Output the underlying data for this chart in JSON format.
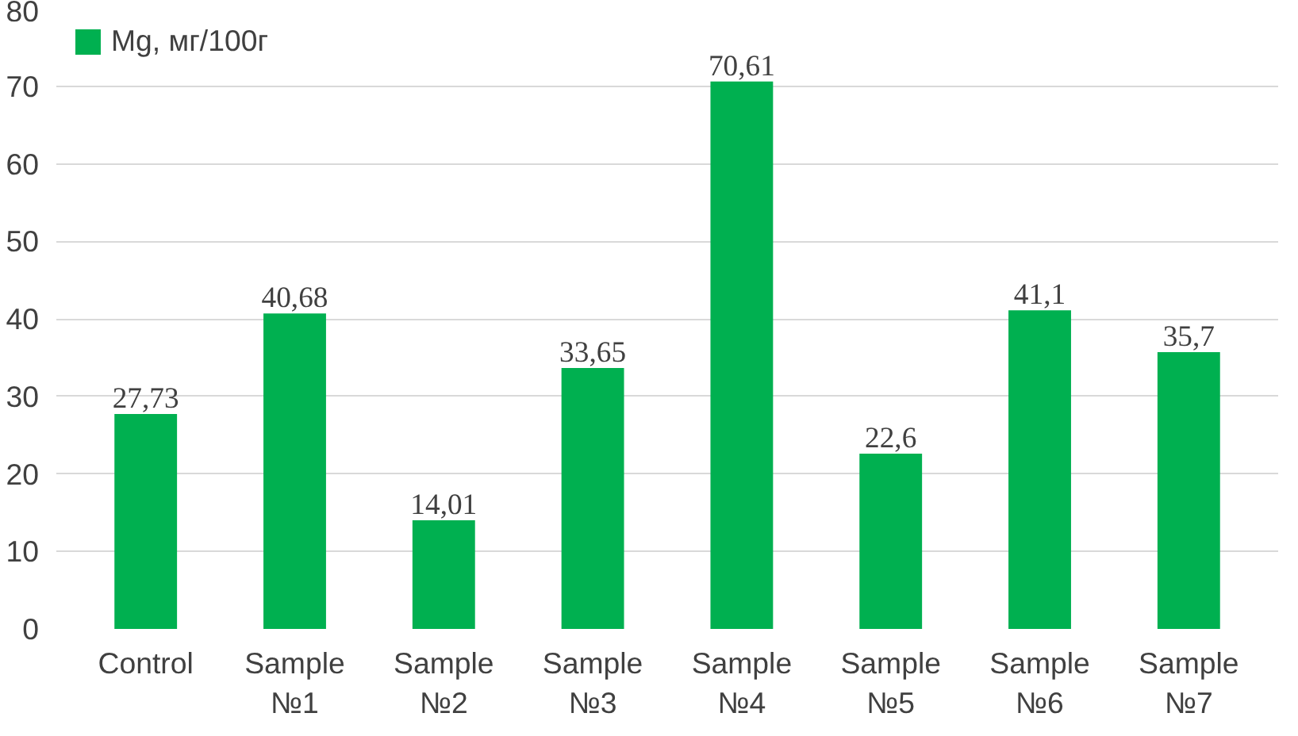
{
  "chart_data": {
    "type": "bar",
    "categories": [
      "Control",
      "Sample №1",
      "Sample №2",
      "Sample №3",
      "Sample №4",
      "Sample №5",
      "Sample №6",
      "Sample №7"
    ],
    "series": [
      {
        "name": "Mg, мг/100г",
        "color": "#00b050",
        "values": [
          27.73,
          40.68,
          14.01,
          33.65,
          70.61,
          22.6,
          41.1,
          35.7
        ],
        "value_labels": [
          "27,73",
          "40,68",
          "14,01",
          "33,65",
          "70,61",
          "22,6",
          "41,1",
          "35,7"
        ]
      }
    ],
    "ylim": [
      0,
      80
    ],
    "yticks": [
      0,
      10,
      20,
      30,
      40,
      50,
      60,
      70,
      80
    ],
    "grid": "y",
    "legend": "top left"
  }
}
